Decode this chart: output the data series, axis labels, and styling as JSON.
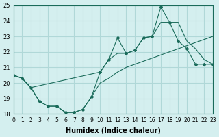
{
  "xlabel": "Humidex (Indice chaleur)",
  "ylabel": "",
  "background_color": "#d4efef",
  "grid_color": "#b0d8d8",
  "line_color": "#1a6b5a",
  "xlim": [
    0,
    23
  ],
  "ylim": [
    18,
    25
  ],
  "xticks": [
    0,
    1,
    2,
    3,
    4,
    5,
    6,
    7,
    8,
    9,
    10,
    11,
    12,
    13,
    14,
    15,
    16,
    17,
    18,
    19,
    20,
    21,
    22,
    23
  ],
  "yticks": [
    18,
    19,
    20,
    21,
    22,
    23,
    24,
    25
  ],
  "series": [
    {
      "x": [
        0,
        1,
        2,
        3,
        4,
        5,
        6,
        7,
        8,
        9,
        10,
        11,
        12,
        13,
        14,
        15,
        16,
        17,
        18,
        19,
        20,
        21,
        22,
        23
      ],
      "y": [
        20.5,
        20.3,
        19.7,
        18.8,
        18.5,
        18.5,
        18.1,
        18.1,
        18.3,
        19.1,
        20.7,
        21.5,
        22.9,
        21.9,
        22.1,
        22.9,
        23.0,
        24.9,
        23.9,
        22.7,
        22.2,
        21.2,
        21.2,
        21.2
      ],
      "marker": "D",
      "markersize": 3
    },
    {
      "x": [
        0,
        1,
        2,
        10,
        11,
        12,
        13,
        14,
        15,
        16,
        17,
        18,
        19,
        20,
        21,
        22,
        23
      ],
      "y": [
        20.5,
        20.3,
        19.7,
        20.7,
        21.5,
        21.9,
        21.9,
        22.1,
        22.9,
        23.0,
        23.9,
        23.9,
        23.9,
        22.7,
        22.2,
        21.5,
        21.2
      ],
      "marker": null,
      "markersize": 0
    },
    {
      "x": [
        0,
        1,
        2,
        3,
        4,
        5,
        6,
        7,
        8,
        9,
        10,
        11,
        12,
        13,
        14,
        15,
        16,
        17,
        18,
        19,
        20,
        21,
        22,
        23
      ],
      "y": [
        20.5,
        20.3,
        19.7,
        18.8,
        18.5,
        18.5,
        18.1,
        18.1,
        18.3,
        19.1,
        20.0,
        20.3,
        20.7,
        21.0,
        21.2,
        21.4,
        21.6,
        21.8,
        22.0,
        22.2,
        22.4,
        22.6,
        22.8,
        23.0
      ],
      "marker": null,
      "markersize": 0
    }
  ]
}
